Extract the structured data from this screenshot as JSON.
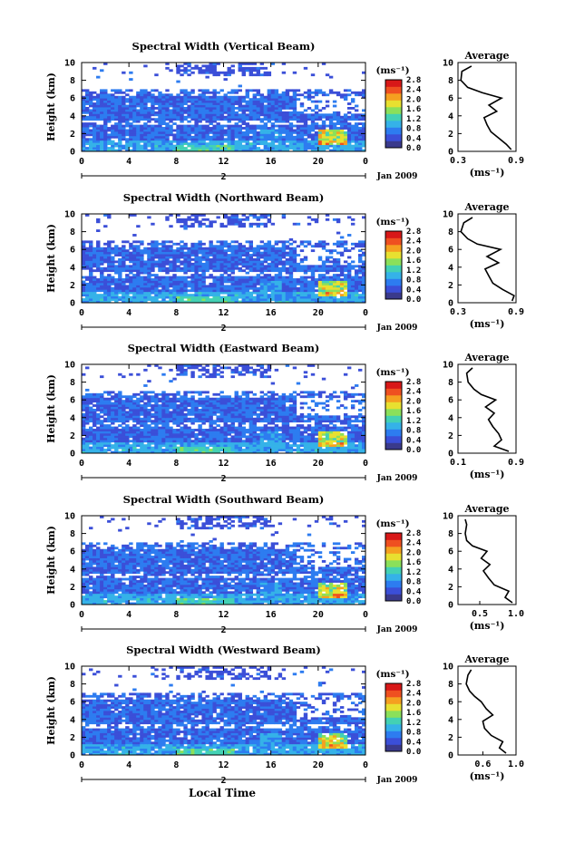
{
  "figure": {
    "x_axis_label": "Local Time",
    "x_ticks": [
      "0",
      "4",
      "8",
      "12",
      "16",
      "20",
      "0"
    ],
    "day_label": "2",
    "date_label": "Jan 2009",
    "y_axis_label": "Height (km)",
    "y_ticks": [
      "0",
      "2",
      "4",
      "6",
      "8",
      "10"
    ],
    "colorbar_unit": "(ms⁻¹)",
    "colorbar_ticks": [
      "0.0",
      "0.4",
      "0.8",
      "1.2",
      "1.6",
      "2.0",
      "2.4",
      "2.8"
    ],
    "avg_title": "Average",
    "avg_unit": "(ms⁻¹)"
  },
  "colors": {
    "colormap": [
      "#3a3a8c",
      "#3b4fd8",
      "#2d7cf0",
      "#35b2e8",
      "#43d1b4",
      "#8be05a",
      "#e8e030",
      "#f5a020",
      "#ef5020",
      "#d81818"
    ],
    "background": "#ffffff"
  },
  "chart_data": [
    {
      "type": "heatmap",
      "title": "Spectral Width (Vertical Beam)",
      "xlabel": "",
      "ylabel": "Height (km)",
      "xlim": [
        0,
        24
      ],
      "ylim": [
        0,
        10
      ],
      "clim": [
        0.0,
        2.8
      ],
      "average_profile": {
        "xlim": [
          0.3,
          0.9
        ],
        "xticks": [
          "0.3",
          "0.9"
        ],
        "heights": [
          0.2,
          0.8,
          1.5,
          2.2,
          3.0,
          3.8,
          4.5,
          5.2,
          6.0,
          6.6,
          7.2,
          8.0,
          9.0,
          9.6
        ],
        "values": [
          0.85,
          0.8,
          0.72,
          0.64,
          0.6,
          0.57,
          0.7,
          0.62,
          0.75,
          0.55,
          0.4,
          0.33,
          0.34,
          0.44
        ]
      }
    },
    {
      "type": "heatmap",
      "title": "Spectral Width (Northward Beam)",
      "xlabel": "",
      "ylabel": "Height (km)",
      "xlim": [
        0,
        24
      ],
      "ylim": [
        0,
        10
      ],
      "clim": [
        0.0,
        2.8
      ],
      "average_profile": {
        "xlim": [
          0.3,
          0.9
        ],
        "xticks": [
          "0.3",
          "0.9"
        ],
        "heights": [
          0.2,
          0.8,
          1.5,
          2.2,
          3.0,
          3.8,
          4.5,
          5.2,
          6.0,
          6.6,
          7.2,
          8.0,
          9.0,
          9.6
        ],
        "values": [
          0.86,
          0.88,
          0.76,
          0.66,
          0.62,
          0.58,
          0.72,
          0.6,
          0.74,
          0.5,
          0.4,
          0.33,
          0.36,
          0.45
        ]
      }
    },
    {
      "type": "heatmap",
      "title": "Spectral Width (Eastward Beam)",
      "xlabel": "",
      "ylabel": "Height (km)",
      "xlim": [
        0.1,
        0.9
      ],
      "ylim": [
        0,
        10
      ],
      "clim": [
        0.0,
        2.8
      ],
      "average_profile": {
        "xlim": [
          0.1,
          0.9
        ],
        "xticks": [
          "0.1",
          "0.9"
        ],
        "heights": [
          0.2,
          0.8,
          1.5,
          2.2,
          3.0,
          3.8,
          4.5,
          5.2,
          6.0,
          6.6,
          7.2,
          8.0,
          9.0,
          9.6
        ],
        "values": [
          0.8,
          0.6,
          0.7,
          0.66,
          0.58,
          0.52,
          0.6,
          0.48,
          0.62,
          0.42,
          0.32,
          0.24,
          0.22,
          0.3
        ]
      }
    },
    {
      "type": "heatmap",
      "title": "Spectral Width (Southward Beam)",
      "xlabel": "",
      "ylabel": "Height (km)",
      "xlim": [
        0,
        24
      ],
      "ylim": [
        0,
        10
      ],
      "clim": [
        0.0,
        2.8
      ],
      "average_profile": {
        "xlim": [
          0.2,
          1.0
        ],
        "xticks": [
          "0.5",
          "1.0"
        ],
        "heights": [
          0.2,
          0.8,
          1.5,
          2.2,
          3.0,
          3.8,
          4.5,
          5.2,
          6.0,
          6.6,
          7.2,
          8.0,
          9.0,
          9.6
        ],
        "values": [
          0.95,
          0.85,
          0.9,
          0.7,
          0.62,
          0.55,
          0.64,
          0.52,
          0.6,
          0.4,
          0.32,
          0.3,
          0.32,
          0.3
        ]
      }
    },
    {
      "type": "heatmap",
      "title": "Spectral Width (Westward Beam)",
      "xlabel": "Local Time",
      "ylabel": "Height (km)",
      "xlim": [
        0,
        24
      ],
      "ylim": [
        0,
        10
      ],
      "clim": [
        0.0,
        2.8
      ],
      "average_profile": {
        "xlim": [
          0.3,
          1.0
        ],
        "xticks": [
          "0.6",
          "1.0"
        ],
        "heights": [
          0.2,
          0.8,
          1.5,
          2.2,
          3.0,
          3.8,
          4.5,
          5.2,
          6.0,
          6.6,
          7.2,
          8.0,
          9.0,
          9.6
        ],
        "values": [
          0.88,
          0.8,
          0.84,
          0.7,
          0.62,
          0.6,
          0.72,
          0.64,
          0.58,
          0.5,
          0.44,
          0.4,
          0.42,
          0.46
        ]
      }
    }
  ]
}
